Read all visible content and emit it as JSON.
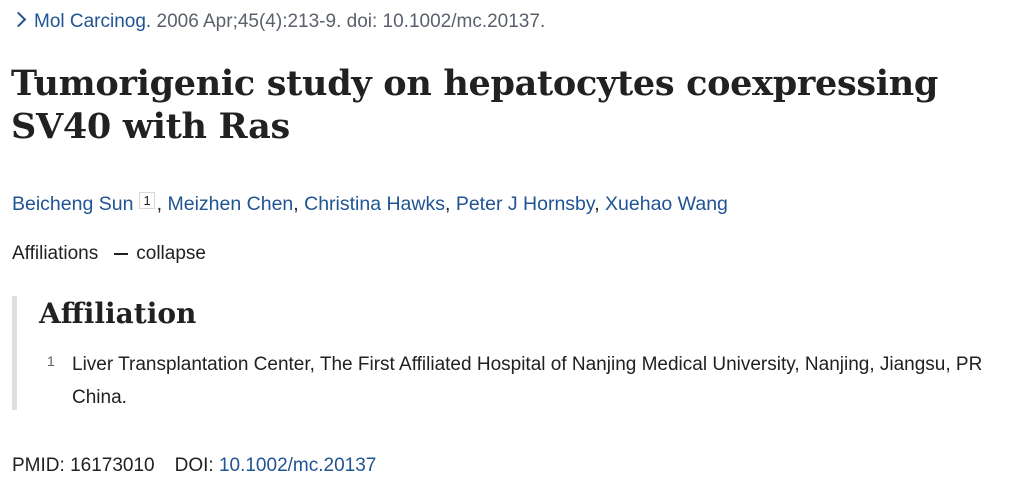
{
  "citation": {
    "journal": "Mol Carcinog.",
    "details": "2006 Apr;45(4):213-9. doi: 10.1002/mc.20137."
  },
  "article": {
    "title": "Tumorigenic study on hepatocytes coexpressing SV40 with Ras"
  },
  "authors": [
    {
      "name": "Beicheng Sun",
      "affiliation_ref": "1"
    },
    {
      "name": "Meizhen Chen"
    },
    {
      "name": "Christina Hawks"
    },
    {
      "name": "Peter J Hornsby"
    },
    {
      "name": "Xuehao Wang"
    }
  ],
  "affiliations_toggle": {
    "label": "Affiliations",
    "action": "collapse"
  },
  "affiliation": {
    "heading": "Affiliation",
    "items": [
      {
        "number": "1",
        "text": "Liver Transplantation Center, The First Affiliated Hospital of Nanjing Medical University, Nanjing, Jiangsu, PR China."
      }
    ]
  },
  "identifiers": {
    "pmid_label": "PMID:",
    "pmid_value": "16173010",
    "doi_label": "DOI:",
    "doi_value": "10.1002/mc.20137"
  },
  "colors": {
    "link": "#205493",
    "text": "#212121",
    "muted": "#5b616b",
    "affiliation_border": "#dcdee0"
  }
}
